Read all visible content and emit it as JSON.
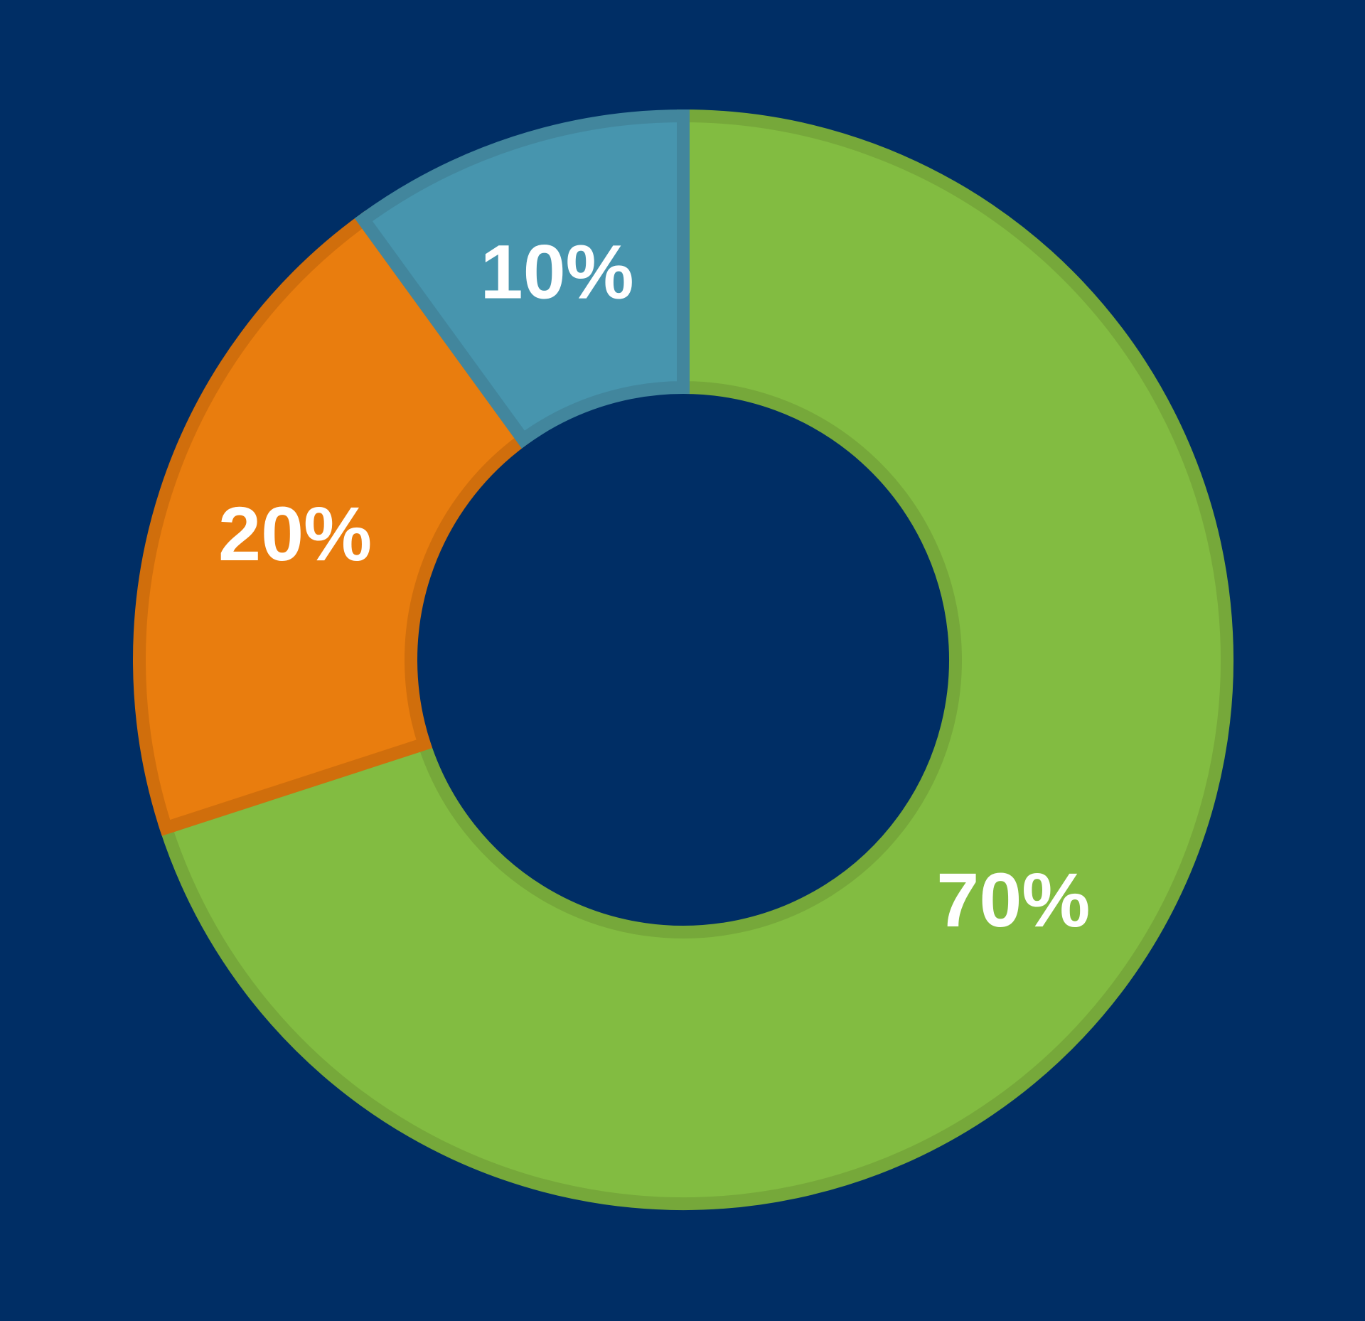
{
  "chart_data": {
    "type": "pie",
    "donut": true,
    "values": [
      70,
      20,
      10
    ],
    "value_labels": [
      "70%",
      "20%",
      "10%"
    ],
    "colors": [
      "#82bc41",
      "#e97d0e",
      "#4795ae"
    ],
    "edge_colors": [
      "#76a83a",
      "#d06e0c",
      "#42869d"
    ],
    "background": "#002e65"
  }
}
